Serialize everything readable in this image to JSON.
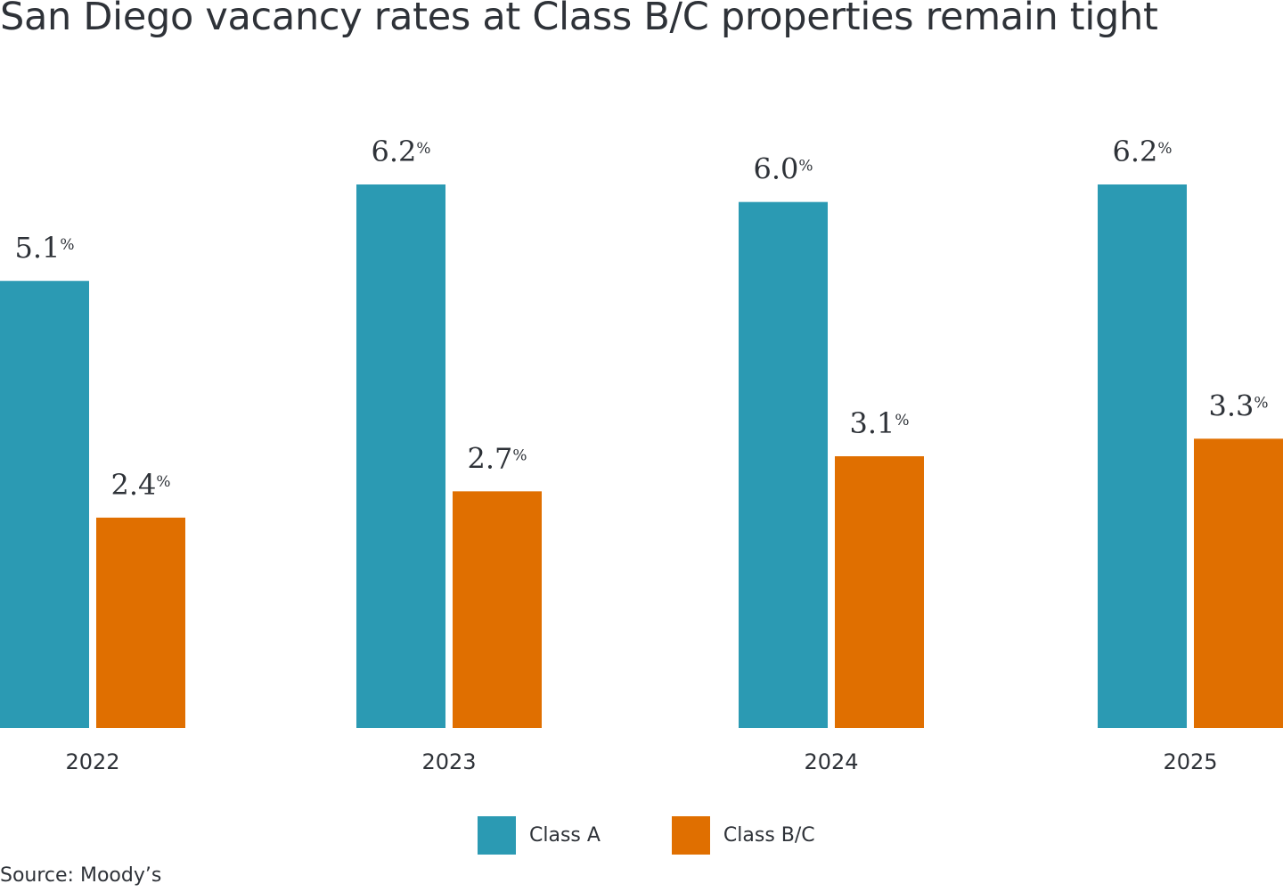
{
  "title": "San Diego vacancy rates at Class B/C properties remain tight",
  "source": "Source: Moody’s",
  "colors": {
    "class_a": "#2b9ab3",
    "class_bc": "#e06f00"
  },
  "legend": [
    {
      "label": "Class A",
      "color": "#2b9ab3"
    },
    {
      "label": "Class B/C",
      "color": "#e06f00"
    }
  ],
  "chart_data": {
    "type": "bar",
    "title": "San Diego vacancy rates at Class B/C properties remain tight",
    "xlabel": "",
    "ylabel": "",
    "ylim": [
      0,
      6.2
    ],
    "grid": false,
    "legend_position": "bottom-center",
    "categories": [
      "2022",
      "2023",
      "2024",
      "2025"
    ],
    "series": [
      {
        "name": "Class A",
        "values": [
          5.1,
          6.2,
          6.0,
          6.2
        ],
        "labels": [
          "5.1",
          "6.2",
          "6.0",
          "6.2"
        ]
      },
      {
        "name": "Class B/C",
        "values": [
          2.4,
          2.7,
          3.1,
          3.3
        ],
        "labels": [
          "2.4",
          "2.7",
          "3.1",
          "3.3"
        ]
      }
    ],
    "value_suffix": "%"
  }
}
